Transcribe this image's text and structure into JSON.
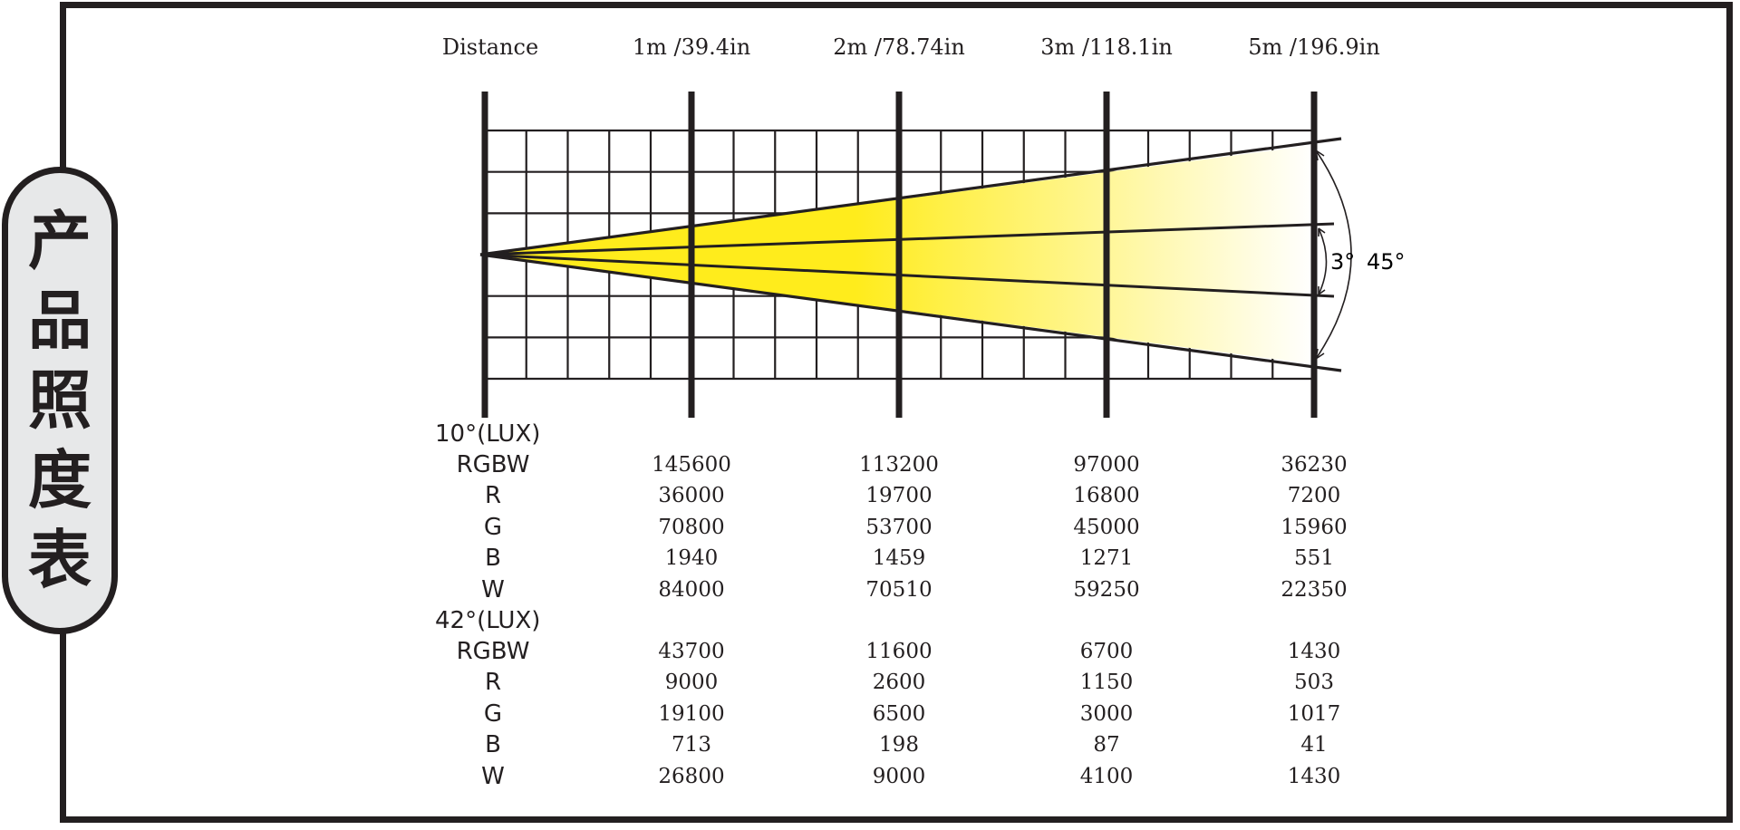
{
  "side_title": "产品照度表",
  "distance_row": {
    "label": "Distance",
    "columns": [
      "1m /39.4in",
      "2m /78.74in",
      "3m /118.1in",
      "5m /196.9in"
    ]
  },
  "beam": {
    "inner_angle_label": "3°",
    "outer_angle_label": "45°",
    "colors": {
      "bright": "#ffec1c",
      "fade": "#ffffff",
      "line": "#231f20"
    }
  },
  "sections": [
    {
      "title": "10°(LUX)",
      "rows": [
        {
          "label": "RGBW",
          "values": [
            "145600",
            "113200",
            "97000",
            "36230"
          ]
        },
        {
          "label": "R",
          "values": [
            "36000",
            "19700",
            "16800",
            "7200"
          ]
        },
        {
          "label": "G",
          "values": [
            "70800",
            "53700",
            "45000",
            "15960"
          ]
        },
        {
          "label": "B",
          "values": [
            "1940",
            "1459",
            "1271",
            "551"
          ]
        },
        {
          "label": "W",
          "values": [
            "84000",
            "70510",
            "59250",
            "22350"
          ]
        }
      ]
    },
    {
      "title": "42°(LUX)",
      "rows": [
        {
          "label": "RGBW",
          "values": [
            "43700",
            "11600",
            "6700",
            "1430"
          ]
        },
        {
          "label": "R",
          "values": [
            "9000",
            "2600",
            "1150",
            "503"
          ]
        },
        {
          "label": "G",
          "values": [
            "19100",
            "6500",
            "3000",
            "1017"
          ]
        },
        {
          "label": "B",
          "values": [
            "713",
            "198",
            "87",
            "41"
          ]
        },
        {
          "label": "W",
          "values": [
            "26800",
            "9000",
            "4100",
            "1430"
          ]
        }
      ]
    }
  ]
}
